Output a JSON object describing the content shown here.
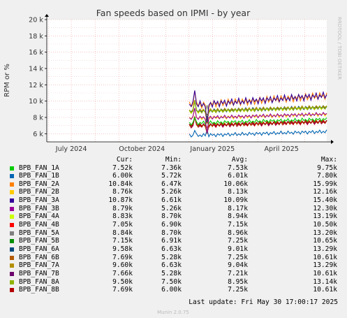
{
  "chart_data": {
    "type": "line",
    "title": "Fan speeds based on IPMI - by year",
    "ylabel": "RPM or %",
    "ylim": [
      5000,
      20000
    ],
    "y_ticks": [
      {
        "value": 6000,
        "label": "6 k"
      },
      {
        "value": 8000,
        "label": "8 k"
      },
      {
        "value": 10000,
        "label": "10 k"
      },
      {
        "value": 12000,
        "label": "12 k"
      },
      {
        "value": 14000,
        "label": "14 k"
      },
      {
        "value": 16000,
        "label": "16 k"
      },
      {
        "value": 18000,
        "label": "18 k"
      },
      {
        "value": 20000,
        "label": "20 k"
      }
    ],
    "x_range": [
      "2024-05-30",
      "2025-05-30"
    ],
    "x_ticks": [
      {
        "date": "2024-07-01",
        "label": "July 2024"
      },
      {
        "date": "2024-10-01",
        "label": "October 2024"
      },
      {
        "date": "2025-01-01",
        "label": "January 2025"
      },
      {
        "date": "2025-04-01",
        "label": "April 2025"
      }
    ],
    "data_start": "2024-12-02",
    "grid": true,
    "side_label": "RRDTOOL / TOBI OETIKER",
    "columns": [
      "Cur:",
      "Min:",
      "Avg:",
      "Max:"
    ],
    "series": [
      {
        "name": "BPB_FAN_1A",
        "color": "#00cc00",
        "cur": "7.52k",
        "min": "7.36k",
        "avg": "7.53k",
        "max": "9.75k"
      },
      {
        "name": "BPB_FAN_1B",
        "color": "#0066b3",
        "cur": "6.00k",
        "min": "5.72k",
        "avg": "6.01k",
        "max": "7.80k"
      },
      {
        "name": "BPB_FAN_2A",
        "color": "#ff8000",
        "cur": "10.84k",
        "min": "6.47k",
        "avg": "10.06k",
        "max": "15.99k"
      },
      {
        "name": "BPB_FAN_2B",
        "color": "#ffcc00",
        "cur": "8.76k",
        "min": "5.26k",
        "avg": "8.13k",
        "max": "12.16k"
      },
      {
        "name": "BPB_FAN_3A",
        "color": "#330099",
        "cur": "10.87k",
        "min": "6.61k",
        "avg": "10.09k",
        "max": "15.40k"
      },
      {
        "name": "BPB_FAN_3B",
        "color": "#990099",
        "cur": "8.79k",
        "min": "5.26k",
        "avg": "8.17k",
        "max": "12.30k"
      },
      {
        "name": "BPB_FAN_4A",
        "color": "#ccff00",
        "cur": "8.83k",
        "min": "8.70k",
        "avg": "8.94k",
        "max": "13.19k"
      },
      {
        "name": "BPB_FAN_4B",
        "color": "#ff0000",
        "cur": "7.05k",
        "min": "6.90k",
        "avg": "7.15k",
        "max": "10.50k"
      },
      {
        "name": "BPB_FAN_5A",
        "color": "#808080",
        "cur": "8.84k",
        "min": "8.70k",
        "avg": "8.96k",
        "max": "13.20k"
      },
      {
        "name": "BPB_FAN_5B",
        "color": "#008f00",
        "cur": "7.15k",
        "min": "6.91k",
        "avg": "7.25k",
        "max": "10.65k"
      },
      {
        "name": "BPB_FAN_6A",
        "color": "#00487d",
        "cur": "9.58k",
        "min": "6.63k",
        "avg": "9.01k",
        "max": "13.29k"
      },
      {
        "name": "BPB_FAN_6B",
        "color": "#b35a00",
        "cur": "7.69k",
        "min": "5.28k",
        "avg": "7.25k",
        "max": "10.61k"
      },
      {
        "name": "BPB_FAN_7A",
        "color": "#b38f00",
        "cur": "9.60k",
        "min": "6.63k",
        "avg": "9.04k",
        "max": "13.29k"
      },
      {
        "name": "BPB_FAN_7B",
        "color": "#6b006b",
        "cur": "7.66k",
        "min": "5.28k",
        "avg": "7.21k",
        "max": "10.61k"
      },
      {
        "name": "BPB_FAN_8A",
        "color": "#8fb300",
        "cur": "9.50k",
        "min": "7.50k",
        "avg": "8.95k",
        "max": "13.14k"
      },
      {
        "name": "BPB_FAN_8B",
        "color": "#b30000",
        "cur": "7.69k",
        "min": "6.00k",
        "avg": "7.25k",
        "max": "10.61k"
      }
    ],
    "last_update": "Last update: Fri May 30 17:00:17 2025",
    "footer": "Munin 2.0.75"
  }
}
